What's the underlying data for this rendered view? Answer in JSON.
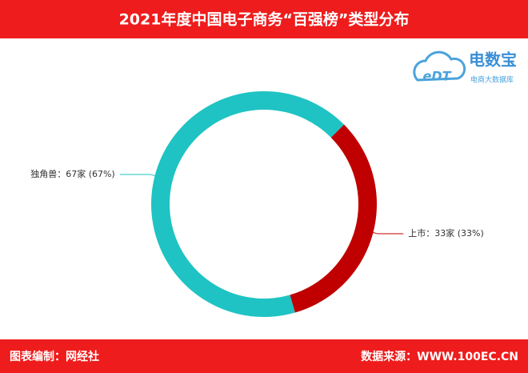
{
  "chart_data": {
    "type": "donut",
    "title": "2021年度中国电子商务“百强榜”类型分布",
    "labels": [
      "独角兽：67家 (67%)",
      "上市：33家 (33%)"
    ],
    "values": [
      67,
      33
    ],
    "colors": [
      "#1fc3c3",
      "#c00000"
    ]
  },
  "logo": {
    "name": "电数宝",
    "subtitle": "电商大数据库",
    "mark": "eDT"
  },
  "footer": {
    "left": "图表编制：网经社",
    "right": "数据来源：WWW.100EC.CN"
  }
}
